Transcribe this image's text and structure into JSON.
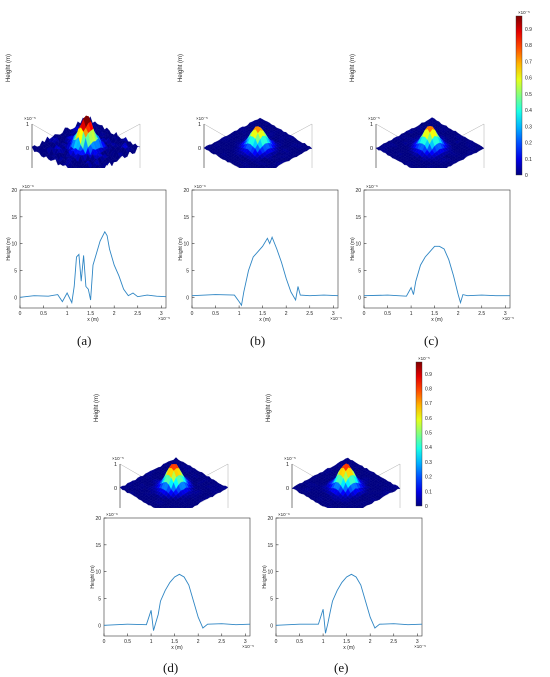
{
  "panels": [
    {
      "id": "a",
      "caption": "(a)"
    },
    {
      "id": "b",
      "caption": "(b)"
    },
    {
      "id": "c",
      "caption": "(c)"
    },
    {
      "id": "d",
      "caption": "(d)"
    },
    {
      "id": "e",
      "caption": "(e)"
    }
  ],
  "surface_axes": {
    "z_label": "Height (m)",
    "x_label": "x (m)",
    "y_label": "y (m)",
    "z_exponent": "×10⁻⁵",
    "x_exponent": "×10⁻⁵",
    "y_exponent": "×10⁻⁵",
    "z_ticks": [
      "1",
      "0",
      "-1",
      "-2"
    ],
    "x_ticks": [
      "0",
      "2"
    ],
    "y_ticks": [
      "3",
      "2",
      "1",
      "0"
    ]
  },
  "colorbar": {
    "exponent": "×10⁻⁵",
    "ticks": [
      "0.9",
      "0.8",
      "0.7",
      "0.6",
      "0.5",
      "0.4",
      "0.3",
      "0.2",
      "0.1",
      "0"
    ]
  },
  "chart_data": [
    {
      "type": "line",
      "panel": "a",
      "xlabel": "x (m)",
      "ylabel": "Height (m)",
      "x_exponent": "×10⁻⁵",
      "y_exponent": "×10⁻⁶",
      "xlim": [
        0,
        3.1
      ],
      "ylim": [
        -2,
        20
      ],
      "xticks": [
        "0",
        "0.5",
        "1",
        "1.5",
        "2",
        "2.5",
        "3"
      ],
      "yticks": [
        "0",
        "5",
        "10",
        "15",
        "20"
      ],
      "x": [
        0,
        0.3,
        0.6,
        0.8,
        0.9,
        1.0,
        1.1,
        1.15,
        1.2,
        1.25,
        1.3,
        1.35,
        1.4,
        1.45,
        1.5,
        1.55,
        1.6,
        1.7,
        1.8,
        1.85,
        1.9,
        2.0,
        2.1,
        2.2,
        2.3,
        2.4,
        2.5,
        2.7,
        2.9,
        3.1
      ],
      "y": [
        0,
        0.3,
        0.2,
        0.5,
        -0.8,
        0.8,
        -1.0,
        2.0,
        7.5,
        8.0,
        3.0,
        7.8,
        2.0,
        1.5,
        -0.5,
        6.0,
        7.5,
        10.5,
        12.2,
        11.5,
        9.0,
        6.0,
        4.0,
        1.5,
        0.3,
        0.8,
        0.1,
        0.4,
        0.2,
        0.1
      ]
    },
    {
      "type": "line",
      "panel": "b",
      "xlabel": "x (m)",
      "ylabel": "Height (m)",
      "x_exponent": "×10⁻⁵",
      "y_exponent": "×10⁻⁶",
      "xlim": [
        0,
        3.1
      ],
      "ylim": [
        -2,
        20
      ],
      "xticks": [
        "0",
        "0.5",
        "1",
        "1.5",
        "2",
        "2.5",
        "3"
      ],
      "yticks": [
        "0",
        "5",
        "10",
        "15",
        "20"
      ],
      "x": [
        0,
        0.5,
        0.9,
        1.0,
        1.05,
        1.1,
        1.2,
        1.3,
        1.4,
        1.5,
        1.6,
        1.65,
        1.7,
        1.8,
        1.9,
        2.0,
        2.1,
        2.2,
        2.25,
        2.3,
        2.5,
        2.8,
        3.1
      ],
      "y": [
        0.3,
        0.5,
        0.4,
        -0.8,
        -1.5,
        1.0,
        5.0,
        7.5,
        8.5,
        9.5,
        11.0,
        10.0,
        11.2,
        9.0,
        6.5,
        3.5,
        1.0,
        -0.5,
        2.0,
        0.4,
        0.3,
        0.4,
        0.3
      ]
    },
    {
      "type": "line",
      "panel": "c",
      "xlabel": "x (m)",
      "ylabel": "Height (m)",
      "x_exponent": "×10⁻⁵",
      "y_exponent": "×10⁻⁶",
      "xlim": [
        0,
        3.1
      ],
      "ylim": [
        -2,
        20
      ],
      "xticks": [
        "0",
        "0.5",
        "1",
        "1.5",
        "2",
        "2.5",
        "3"
      ],
      "yticks": [
        "0",
        "5",
        "10",
        "15",
        "20"
      ],
      "x": [
        0,
        0.5,
        0.9,
        1.0,
        1.05,
        1.1,
        1.2,
        1.3,
        1.4,
        1.5,
        1.6,
        1.7,
        1.8,
        1.9,
        2.0,
        2.05,
        2.1,
        2.2,
        2.5,
        2.8,
        3.1
      ],
      "y": [
        0.3,
        0.4,
        0.2,
        1.8,
        0.5,
        3.0,
        6.0,
        7.5,
        8.5,
        9.5,
        9.5,
        9.0,
        7.0,
        4.0,
        0.5,
        -1.0,
        0.5,
        0.3,
        0.4,
        0.3,
        0.3
      ]
    },
    {
      "type": "line",
      "panel": "d",
      "xlabel": "x (m)",
      "ylabel": "Height (m)",
      "x_exponent": "×10⁻⁵",
      "y_exponent": "×10⁻⁶",
      "xlim": [
        0,
        3.1
      ],
      "ylim": [
        -2,
        20
      ],
      "xticks": [
        "0",
        "0.5",
        "1",
        "1.5",
        "2",
        "2.5",
        "3"
      ],
      "yticks": [
        "0",
        "5",
        "10",
        "15",
        "20"
      ],
      "x": [
        0,
        0.5,
        0.9,
        1.0,
        1.05,
        1.1,
        1.15,
        1.2,
        1.3,
        1.4,
        1.5,
        1.6,
        1.7,
        1.8,
        1.9,
        2.0,
        2.1,
        2.2,
        2.5,
        2.8,
        3.1
      ],
      "y": [
        0,
        0.2,
        0.1,
        2.8,
        -1.0,
        0.5,
        2.0,
        4.5,
        6.5,
        8.0,
        9.0,
        9.5,
        9.0,
        7.5,
        4.5,
        1.5,
        -0.5,
        0.2,
        0.3,
        0.1,
        0.2
      ]
    },
    {
      "type": "line",
      "panel": "e",
      "xlabel": "x (m)",
      "ylabel": "Height (m)",
      "x_exponent": "×10⁻⁵",
      "y_exponent": "×10⁻⁶",
      "xlim": [
        0,
        3.1
      ],
      "ylim": [
        -2,
        20
      ],
      "xticks": [
        "0",
        "0.5",
        "1",
        "1.5",
        "2",
        "2.5",
        "3"
      ],
      "yticks": [
        "0",
        "5",
        "10",
        "15",
        "20"
      ],
      "x": [
        0,
        0.5,
        0.9,
        1.0,
        1.05,
        1.1,
        1.15,
        1.2,
        1.3,
        1.4,
        1.5,
        1.6,
        1.7,
        1.8,
        1.9,
        2.0,
        2.1,
        2.2,
        2.5,
        2.8,
        3.1
      ],
      "y": [
        0,
        0.2,
        0.2,
        3.0,
        -1.5,
        0.3,
        2.5,
        4.5,
        6.5,
        8.0,
        9.0,
        9.5,
        9.0,
        7.5,
        4.5,
        1.5,
        -0.5,
        0.2,
        0.3,
        0.1,
        0.2
      ]
    }
  ]
}
